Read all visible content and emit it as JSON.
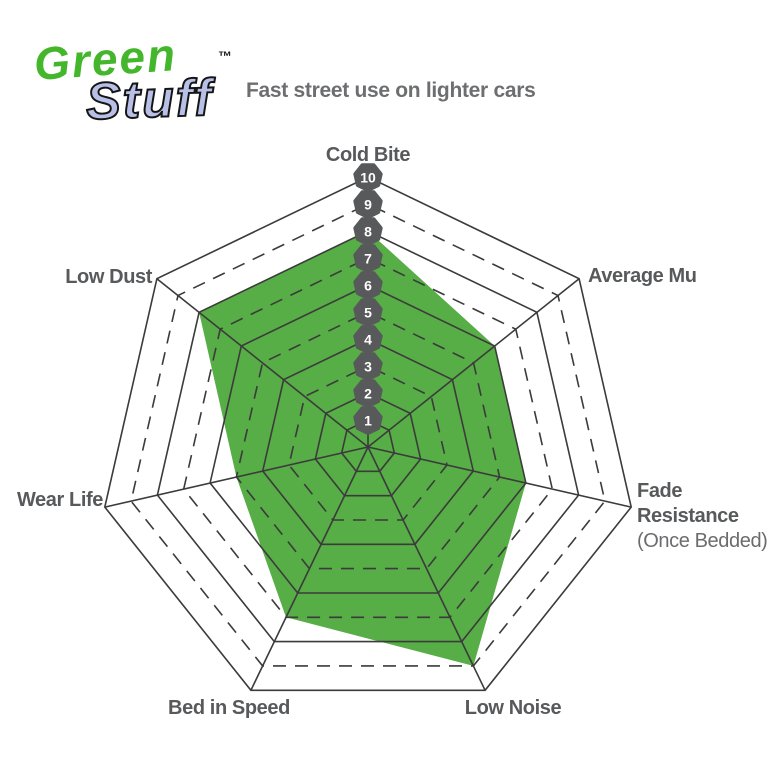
{
  "logo": {
    "green": "Green",
    "stuff": "Stuff",
    "tm": "™"
  },
  "subtitle": "Fast street use on lighter cars",
  "chart_data": {
    "type": "radar",
    "title": "Fast street use on lighter cars",
    "axes": [
      {
        "id": "cold-bite",
        "label": "Cold Bite"
      },
      {
        "id": "average-mu",
        "label": "Average Mu"
      },
      {
        "id": "fade-resistance",
        "label": "Fade Resistance",
        "label_lines": [
          "Fade",
          "Resistance"
        ],
        "sublabel": "(Once Bedded)"
      },
      {
        "id": "low-noise",
        "label": "Low Noise"
      },
      {
        "id": "bed-in-speed",
        "label": "Bed in Speed"
      },
      {
        "id": "wear-life",
        "label": "Wear Life"
      },
      {
        "id": "low-dust",
        "label": "Low Dust"
      }
    ],
    "values": [
      8,
      6,
      6,
      9,
      7,
      5,
      8
    ],
    "scale": {
      "min": 1,
      "max": 10,
      "ticks": [
        1,
        2,
        3,
        4,
        5,
        6,
        7,
        8,
        9,
        10
      ]
    },
    "rings": {
      "solid": [
        1,
        2,
        4,
        6,
        8,
        10
      ],
      "dashed": [
        3,
        5,
        7,
        9
      ]
    },
    "start_angle": -90,
    "center": [
      368,
      447
    ],
    "unit": 27,
    "badge_radius": 13,
    "colors": {
      "fill": "#57ad46",
      "grid": "#3b3b3b",
      "badge": "#58595b",
      "badge_text": "#ffffff",
      "label": "#58595b"
    }
  }
}
